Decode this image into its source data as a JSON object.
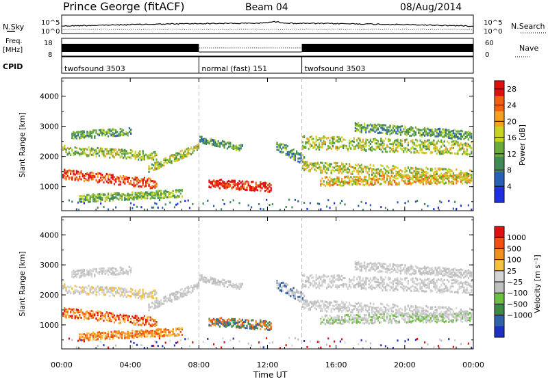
{
  "header": {
    "station": "Prince George (fitACF)",
    "beam": "Beam 04",
    "date": "08/Aug/2014"
  },
  "panels": {
    "nsky": {
      "label": "N.Sky",
      "right_label": "N.Search",
      "ticks_left": [
        "10^5",
        "10^0"
      ],
      "ticks_right": [
        "10^5",
        "10^0"
      ]
    },
    "freq": {
      "label_line1": "Freq.",
      "label_line2": "[MHz]",
      "right_label": "Nave",
      "ticks_left": [
        "18",
        "8"
      ],
      "ticks_right": [
        "60",
        "0"
      ]
    },
    "cpid": {
      "label": "CPID",
      "segments": [
        {
          "text": "twofsound 3503",
          "start_hour": 0,
          "end_hour": 8
        },
        {
          "text": "normal (fast) 151",
          "start_hour": 8,
          "end_hour": 14
        },
        {
          "text": "twofsound 3503",
          "start_hour": 14,
          "end_hour": 24
        }
      ]
    }
  },
  "chart_data": [
    {
      "type": "heatmap",
      "ylabel": "Slant Range [km]",
      "yticks": [
        "1000",
        "2000",
        "3000",
        "4000"
      ],
      "ylim": [
        200,
        4600
      ],
      "xlim": [
        0,
        24
      ],
      "colorbar": {
        "label": "Power [dB]",
        "ticks": [
          "4",
          "8",
          "12",
          "16",
          "20",
          "24",
          "28"
        ],
        "range": [
          0,
          30
        ],
        "colors": [
          "#1f2fe0",
          "#2a5fb8",
          "#3f8a55",
          "#6aaa3a",
          "#c8d424",
          "#f5a020",
          "#f06010",
          "#e01010"
        ]
      }
    },
    {
      "type": "heatmap",
      "xlabel": "Time UT",
      "xticks": [
        "00:00",
        "04:00",
        "08:00",
        "12:00",
        "16:00",
        "20:00",
        "00:00"
      ],
      "ylabel": "Slant Range [km]",
      "yticks": [
        "1000",
        "2000",
        "3000",
        "4000"
      ],
      "ylim": [
        200,
        4600
      ],
      "xlim": [
        0,
        24
      ],
      "colorbar": {
        "label": "Velocity [m s⁻¹]",
        "ticks": [
          "1000",
          "500",
          "100",
          "25",
          "−25",
          "−100",
          "−500",
          "−1000"
        ],
        "colors": [
          "#2030c0",
          "#2f62a8",
          "#3d8a48",
          "#6bc040",
          "#bfbfbf",
          "#d4d4d4",
          "#f6c040",
          "#f09020",
          "#f05010",
          "#e01010"
        ]
      }
    }
  ]
}
